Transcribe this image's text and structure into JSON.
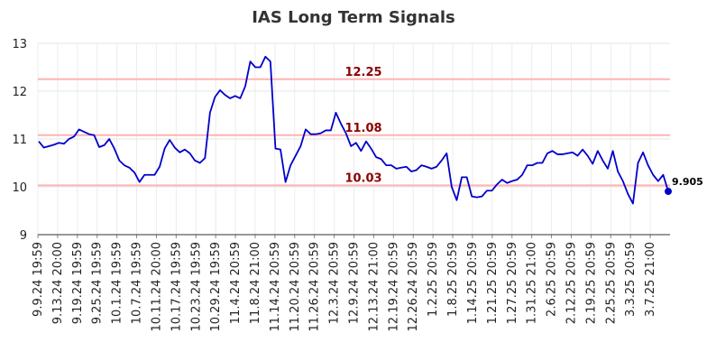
{
  "chart_data": {
    "type": "line",
    "title": "IAS Long Term Signals",
    "xlabel": "",
    "ylabel": "",
    "ylim": [
      9,
      13
    ],
    "yticks": [
      9,
      10,
      11,
      12,
      13
    ],
    "grid": true,
    "x_tick_labels": [
      "9.9.24 19:59",
      "9.13.24 20:00",
      "9.19.24 19:59",
      "9.25.24 19:59",
      "10.1.24 19:59",
      "10.7.24 19:59",
      "10.11.24 20:00",
      "10.17.24 19:59",
      "10.23.24 19:59",
      "10.29.24 19:59",
      "11.4.24 20:59",
      "11.8.24 21:00",
      "11.14.24 20:59",
      "11.20.24 20:59",
      "11.26.24 20:59",
      "12.3.24 20:59",
      "12.9.24 20:59",
      "12.13.24 21:00",
      "12.19.24 20:59",
      "12.26.24 20:59",
      "1.2.25 20:59",
      "1.8.25 20:59",
      "1.14.25 20:59",
      "1.21.25 20:59",
      "1.27.25 20:59",
      "1.31.25 21:00",
      "2.6.25 20:59",
      "2.12.25 20:59",
      "2.19.25 20:59",
      "2.25.25 20:59",
      "3.3.25 20:59",
      "3.7.25 21:00"
    ],
    "reference_lines": [
      {
        "value": 12.25,
        "label": "12.25",
        "color": "#ffb3b3",
        "label_color": "#8b0000"
      },
      {
        "value": 11.08,
        "label": "11.08",
        "color": "#ffb3b3",
        "label_color": "#8b0000"
      },
      {
        "value": 10.03,
        "label": "10.03",
        "color": "#ffb3b3",
        "label_color": "#8b0000"
      }
    ],
    "series": [
      {
        "color": "#0000cc",
        "values": [
          10.95,
          10.82,
          10.85,
          10.88,
          10.92,
          10.9,
          11.0,
          11.05,
          11.2,
          11.15,
          11.1,
          11.08,
          10.83,
          10.87,
          11.0,
          10.8,
          10.55,
          10.45,
          10.4,
          10.3,
          10.1,
          10.25,
          10.25,
          10.25,
          10.42,
          10.8,
          10.98,
          10.82,
          10.72,
          10.78,
          10.7,
          10.55,
          10.5,
          10.6,
          11.55,
          11.88,
          12.02,
          11.92,
          11.85,
          11.9,
          11.85,
          12.1,
          12.62,
          12.5,
          12.5,
          12.72,
          12.62,
          10.8,
          10.78,
          10.1,
          10.45,
          10.65,
          10.85,
          11.2,
          11.1,
          11.1,
          11.12,
          11.18,
          11.18,
          11.55,
          11.32,
          11.12,
          10.85,
          10.92,
          10.75,
          10.95,
          10.8,
          10.62,
          10.58,
          10.45,
          10.45,
          10.38,
          10.4,
          10.42,
          10.32,
          10.35,
          10.45,
          10.42,
          10.38,
          10.42,
          10.55,
          10.7,
          10.0,
          9.72,
          10.2,
          10.2,
          9.8,
          9.78,
          9.8,
          9.92,
          9.92,
          10.05,
          10.15,
          10.08,
          10.12,
          10.15,
          10.25,
          10.45,
          10.45,
          10.5,
          10.5,
          10.7,
          10.75,
          10.68,
          10.68,
          10.7,
          10.72,
          10.65,
          10.78,
          10.65,
          10.48,
          10.75,
          10.55,
          10.38,
          10.75,
          10.32,
          10.12,
          9.85,
          9.65,
          10.5,
          10.72,
          10.45,
          10.25,
          10.12,
          10.25,
          9.905
        ]
      }
    ],
    "last_point_label": "9.905"
  }
}
